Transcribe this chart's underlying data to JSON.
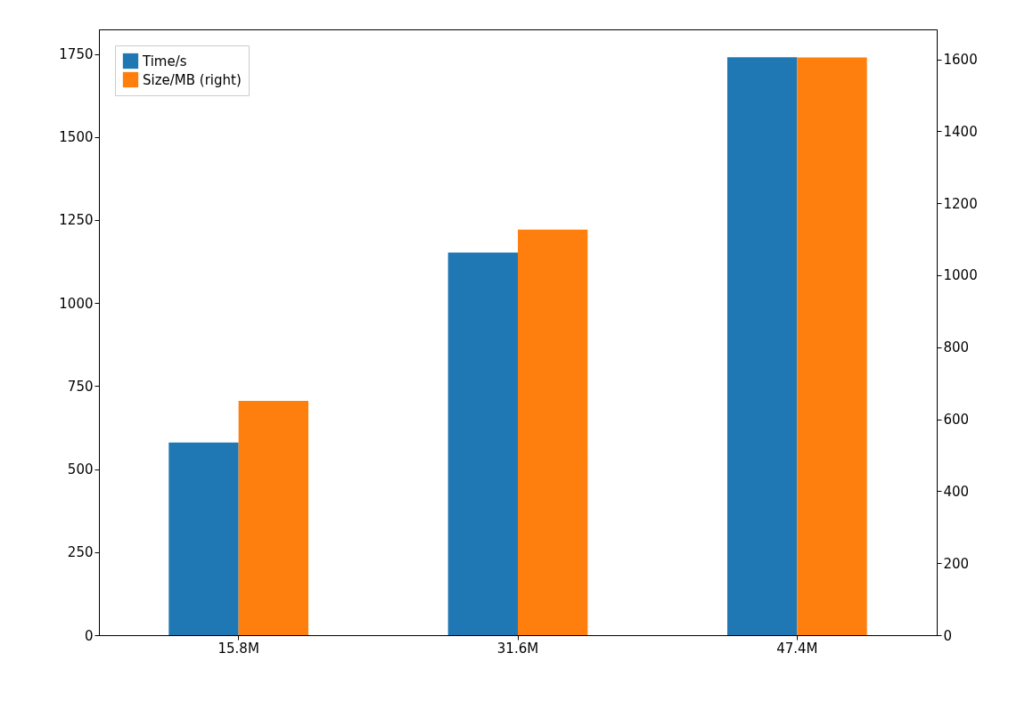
{
  "chart_data": {
    "type": "bar",
    "categories": [
      "15.8M",
      "31.6M",
      "47.4M"
    ],
    "series": [
      {
        "name": "Time/s",
        "color": "#1f77b4",
        "values": [
          580,
          1152,
          1740
        ]
      },
      {
        "name": "Size/MB (right)",
        "color": "#ff7f0e",
        "values": [
          651,
          1127,
          1605
        ],
        "axis": "y2"
      }
    ],
    "ylim": [
      0,
      1824
    ],
    "yticks": [
      0,
      250,
      500,
      750,
      1000,
      1250,
      1500,
      1750
    ],
    "y2lim": [
      0,
      1683
    ],
    "y2ticks": [
      0,
      200,
      400,
      600,
      800,
      1000,
      1200,
      1400,
      1600
    ],
    "grid": false,
    "legend": "top left"
  }
}
